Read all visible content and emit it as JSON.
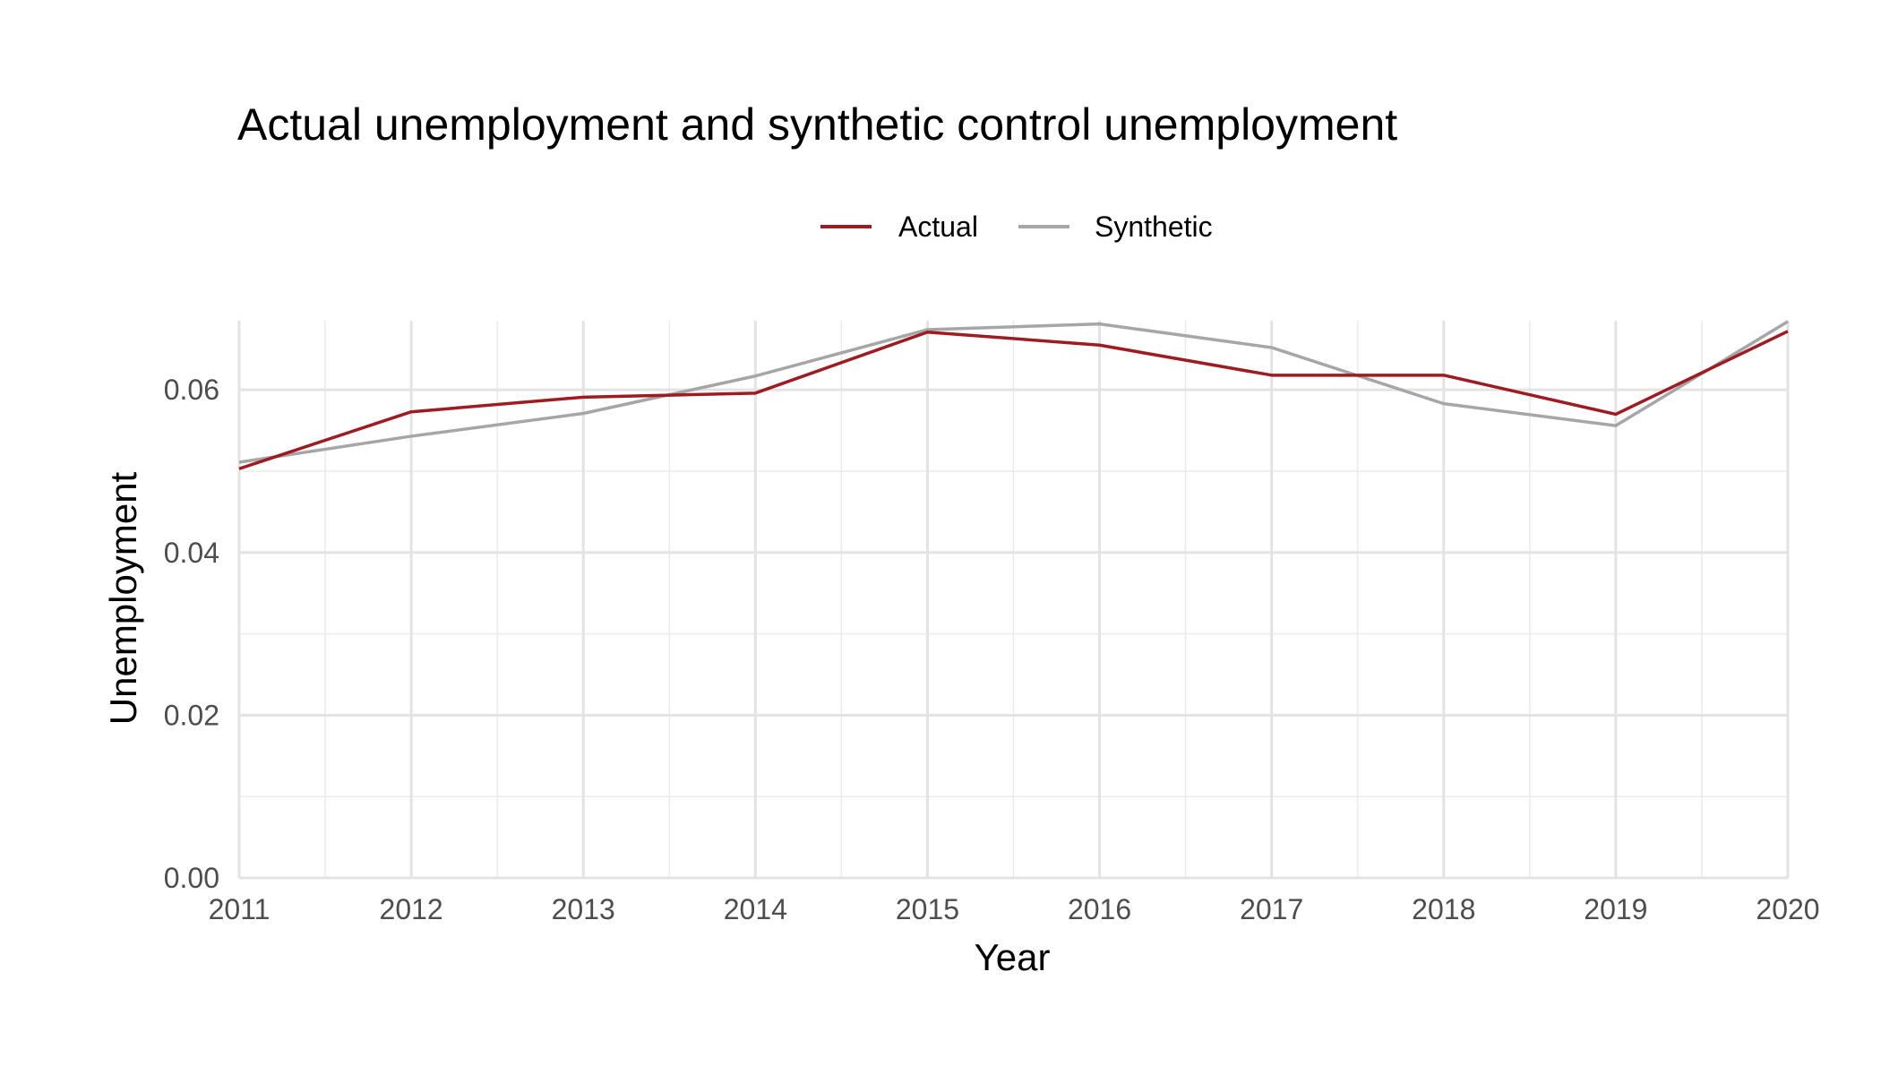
{
  "chart_data": {
    "type": "line",
    "title": "Actual unemployment and synthetic control unemployment",
    "xlabel": "Year",
    "ylabel": "Unemployment",
    "x": [
      2011,
      2012,
      2013,
      2014,
      2015,
      2016,
      2017,
      2018,
      2019,
      2020
    ],
    "xlim": [
      2011,
      2020
    ],
    "ylim": [
      0,
      0.0685
    ],
    "x_ticks": [
      "2011",
      "2012",
      "2013",
      "2014",
      "2015",
      "2016",
      "2017",
      "2018",
      "2019",
      "2020"
    ],
    "y_ticks": [
      {
        "value": 0,
        "label": "0.00"
      },
      {
        "value": 0.02,
        "label": "0.02"
      },
      {
        "value": 0.04,
        "label": "0.04"
      },
      {
        "value": 0.06,
        "label": "0.06"
      }
    ],
    "grid": true,
    "legend_position": "top",
    "series": [
      {
        "name": "Actual",
        "color": "#9e1b22",
        "values": [
          0.0503,
          0.0573,
          0.0591,
          0.0596,
          0.0671,
          0.0655,
          0.0618,
          0.0618,
          0.057,
          0.0672
        ]
      },
      {
        "name": "Synthetic",
        "color": "#a6a6a6",
        "values": [
          0.0511,
          0.0543,
          0.0571,
          0.0617,
          0.0674,
          0.0681,
          0.0652,
          0.0583,
          0.0556,
          0.0684
        ]
      }
    ]
  }
}
